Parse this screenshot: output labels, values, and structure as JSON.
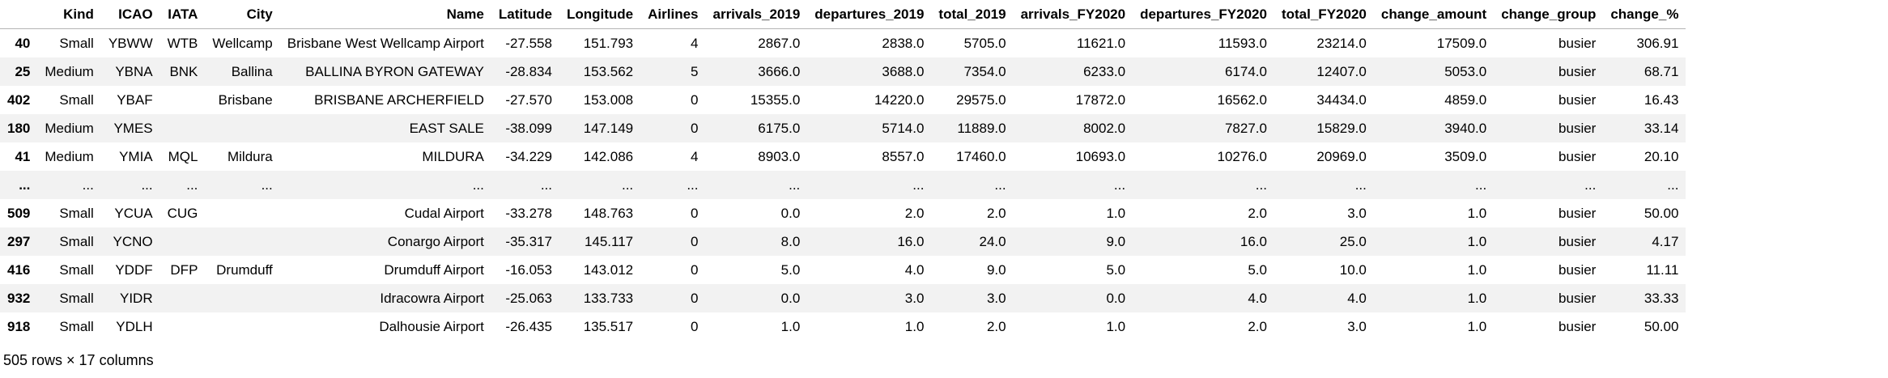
{
  "table": {
    "columns": [
      "",
      "Kind",
      "ICAO",
      "IATA",
      "City",
      "Name",
      "Latitude",
      "Longitude",
      "Airlines",
      "arrivals_2019",
      "departures_2019",
      "total_2019",
      "arrivals_FY2020",
      "departures_FY2020",
      "total_FY2020",
      "change_amount",
      "change_group",
      "change_%"
    ],
    "rows": [
      [
        "40",
        "Small",
        "YBWW",
        "WTB",
        "Wellcamp",
        "Brisbane West Wellcamp Airport",
        "-27.558",
        "151.793",
        "4",
        "2867.0",
        "2838.0",
        "5705.0",
        "11621.0",
        "11593.0",
        "23214.0",
        "17509.0",
        "busier",
        "306.91"
      ],
      [
        "25",
        "Medium",
        "YBNA",
        "BNK",
        "Ballina",
        "BALLINA BYRON GATEWAY",
        "-28.834",
        "153.562",
        "5",
        "3666.0",
        "3688.0",
        "7354.0",
        "6233.0",
        "6174.0",
        "12407.0",
        "5053.0",
        "busier",
        "68.71"
      ],
      [
        "402",
        "Small",
        "YBAF",
        "",
        "Brisbane",
        "BRISBANE ARCHERFIELD",
        "-27.570",
        "153.008",
        "0",
        "15355.0",
        "14220.0",
        "29575.0",
        "17872.0",
        "16562.0",
        "34434.0",
        "4859.0",
        "busier",
        "16.43"
      ],
      [
        "180",
        "Medium",
        "YMES",
        "",
        "",
        "EAST SALE",
        "-38.099",
        "147.149",
        "0",
        "6175.0",
        "5714.0",
        "11889.0",
        "8002.0",
        "7827.0",
        "15829.0",
        "3940.0",
        "busier",
        "33.14"
      ],
      [
        "41",
        "Medium",
        "YMIA",
        "MQL",
        "Mildura",
        "MILDURA",
        "-34.229",
        "142.086",
        "4",
        "8903.0",
        "8557.0",
        "17460.0",
        "10693.0",
        "10276.0",
        "20969.0",
        "3509.0",
        "busier",
        "20.10"
      ],
      [
        "...",
        "...",
        "...",
        "...",
        "...",
        "...",
        "...",
        "...",
        "...",
        "...",
        "...",
        "...",
        "...",
        "...",
        "...",
        "...",
        "...",
        "..."
      ],
      [
        "509",
        "Small",
        "YCUA",
        "CUG",
        "",
        "Cudal Airport",
        "-33.278",
        "148.763",
        "0",
        "0.0",
        "2.0",
        "2.0",
        "1.0",
        "2.0",
        "3.0",
        "1.0",
        "busier",
        "50.00"
      ],
      [
        "297",
        "Small",
        "YCNO",
        "",
        "",
        "Conargo Airport",
        "-35.317",
        "145.117",
        "0",
        "8.0",
        "16.0",
        "24.0",
        "9.0",
        "16.0",
        "25.0",
        "1.0",
        "busier",
        "4.17"
      ],
      [
        "416",
        "Small",
        "YDDF",
        "DFP",
        "Drumduff",
        "Drumduff Airport",
        "-16.053",
        "143.012",
        "0",
        "5.0",
        "4.0",
        "9.0",
        "5.0",
        "5.0",
        "10.0",
        "1.0",
        "busier",
        "11.11"
      ],
      [
        "932",
        "Small",
        "YIDR",
        "",
        "",
        "Idracowra Airport",
        "-25.063",
        "133.733",
        "0",
        "0.0",
        "3.0",
        "3.0",
        "0.0",
        "4.0",
        "4.0",
        "1.0",
        "busier",
        "33.33"
      ],
      [
        "918",
        "Small",
        "YDLH",
        "",
        "",
        "Dalhousie Airport",
        "-26.435",
        "135.517",
        "0",
        "1.0",
        "1.0",
        "2.0",
        "1.0",
        "2.0",
        "3.0",
        "1.0",
        "busier",
        "50.00"
      ]
    ],
    "footer": "505 rows × 17 columns"
  }
}
